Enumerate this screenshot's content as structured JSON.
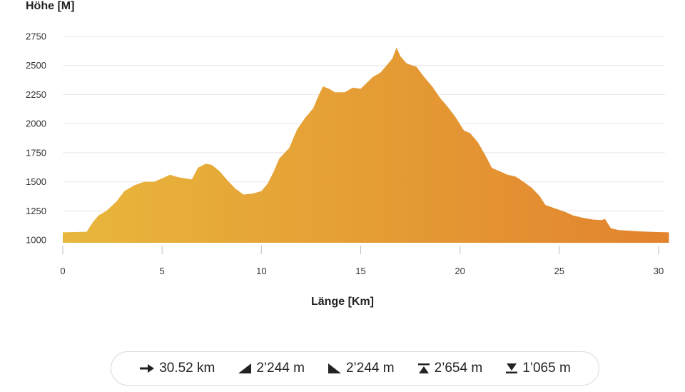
{
  "chart_data": {
    "type": "area",
    "ylabel": "Höhe [M]",
    "xlabel": "Länge [Km]",
    "xlim": [
      0,
      30.52
    ],
    "ylim": [
      1000,
      2750
    ],
    "yticks": [
      1000,
      1250,
      1500,
      1750,
      2000,
      2250,
      2500,
      2750
    ],
    "xticks": [
      0,
      5,
      10,
      15,
      20,
      25,
      30
    ],
    "grid": true,
    "colors": {
      "start": "#e8b73c",
      "end": "#e2832e",
      "grid": "#e6e6e6"
    },
    "points": [
      [
        0,
        1065
      ],
      [
        1.2,
        1070
      ],
      [
        1.5,
        1150
      ],
      [
        1.8,
        1210
      ],
      [
        2.2,
        1250
      ],
      [
        2.7,
        1330
      ],
      [
        3.1,
        1420
      ],
      [
        3.6,
        1470
      ],
      [
        4.1,
        1500
      ],
      [
        4.6,
        1500
      ],
      [
        5.0,
        1530
      ],
      [
        5.4,
        1560
      ],
      [
        5.8,
        1540
      ],
      [
        6.3,
        1525
      ],
      [
        6.5,
        1520
      ],
      [
        6.8,
        1620
      ],
      [
        7.2,
        1655
      ],
      [
        7.5,
        1645
      ],
      [
        7.9,
        1590
      ],
      [
        8.3,
        1510
      ],
      [
        8.7,
        1440
      ],
      [
        9.1,
        1390
      ],
      [
        9.6,
        1400
      ],
      [
        10.0,
        1420
      ],
      [
        10.3,
        1480
      ],
      [
        10.6,
        1580
      ],
      [
        10.9,
        1700
      ],
      [
        11.4,
        1790
      ],
      [
        11.8,
        1950
      ],
      [
        12.2,
        2050
      ],
      [
        12.6,
        2130
      ],
      [
        12.9,
        2250
      ],
      [
        13.1,
        2320
      ],
      [
        13.4,
        2300
      ],
      [
        13.7,
        2270
      ],
      [
        14.2,
        2270
      ],
      [
        14.6,
        2310
      ],
      [
        15.0,
        2300
      ],
      [
        15.3,
        2350
      ],
      [
        15.6,
        2400
      ],
      [
        16.0,
        2440
      ],
      [
        16.3,
        2500
      ],
      [
        16.6,
        2560
      ],
      [
        16.8,
        2654
      ],
      [
        17.0,
        2580
      ],
      [
        17.3,
        2520
      ],
      [
        17.6,
        2500
      ],
      [
        17.8,
        2490
      ],
      [
        18.2,
        2400
      ],
      [
        18.6,
        2320
      ],
      [
        19.0,
        2220
      ],
      [
        19.4,
        2140
      ],
      [
        19.8,
        2050
      ],
      [
        20.2,
        1940
      ],
      [
        20.5,
        1920
      ],
      [
        20.9,
        1840
      ],
      [
        21.3,
        1720
      ],
      [
        21.6,
        1620
      ],
      [
        22.0,
        1590
      ],
      [
        22.4,
        1560
      ],
      [
        22.8,
        1545
      ],
      [
        23.2,
        1500
      ],
      [
        23.6,
        1450
      ],
      [
        24.0,
        1380
      ],
      [
        24.3,
        1300
      ],
      [
        24.8,
        1270
      ],
      [
        25.3,
        1240
      ],
      [
        25.7,
        1210
      ],
      [
        26.2,
        1190
      ],
      [
        26.7,
        1175
      ],
      [
        27.1,
        1170
      ],
      [
        27.3,
        1180
      ],
      [
        27.6,
        1100
      ],
      [
        28.0,
        1085
      ],
      [
        28.6,
        1078
      ],
      [
        29.2,
        1072
      ],
      [
        29.8,
        1068
      ],
      [
        30.52,
        1065
      ]
    ]
  },
  "stats": {
    "distance": "30.52 km",
    "ascent": "2’244 m",
    "descent": "2’244 m",
    "highest": "2’654 m",
    "lowest": "1’065 m"
  },
  "icons": {
    "distance": "arrow-right-icon",
    "ascent": "ascent-triangle-icon",
    "descent": "descent-triangle-icon",
    "highest": "highest-point-icon",
    "lowest": "lowest-point-icon"
  }
}
